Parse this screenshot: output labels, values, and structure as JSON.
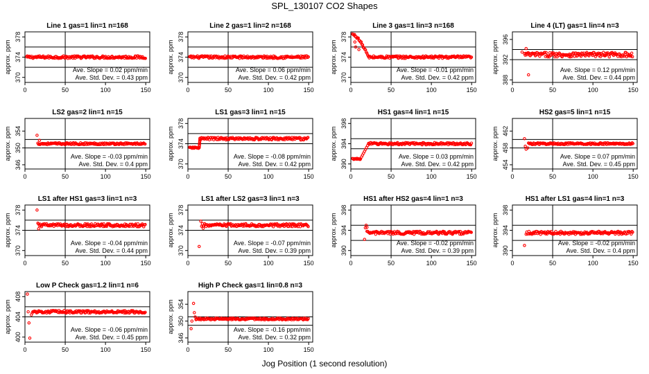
{
  "title": "SPL_130107  CO2 Shapes",
  "xlabel": "Jog Position (1 second resolution)",
  "chart_data": [
    {
      "type": "scatter",
      "title": "Line 1 gas=1 lin=1 n=168",
      "ylabel": "approx. ppm",
      "xlim": [
        0,
        155
      ],
      "xticks": [
        0,
        50,
        100,
        150
      ],
      "ylim": [
        369,
        379
      ],
      "yticks": [
        370,
        374,
        378
      ],
      "ref_lines": [
        372,
        376
      ],
      "vline": 50,
      "slope": "Ave. Slope = 0.02  ppm/min",
      "stddev": "Ave. Std. Dev. = 0.43  ppm",
      "baseline": 374,
      "noise": 0.25,
      "start_x": 2,
      "end_x": 150,
      "color": "#ff0000",
      "shape": "flat",
      "spikes": []
    },
    {
      "type": "scatter",
      "title": "Line 2 gas=1 lin=2 n=168",
      "ylabel": "approx. ppm",
      "xlim": [
        0,
        155
      ],
      "xticks": [
        0,
        50,
        100,
        150
      ],
      "ylim": [
        369,
        379
      ],
      "yticks": [
        370,
        374,
        378
      ],
      "ref_lines": [
        372,
        376
      ],
      "vline": 50,
      "slope": "Ave. Slope = 0.06  ppm/min",
      "stddev": "Ave. Std. Dev. = 0.42  ppm",
      "baseline": 374,
      "noise": 0.25,
      "start_x": 2,
      "end_x": 150,
      "color": "#ff0000",
      "shape": "flat",
      "spikes": []
    },
    {
      "type": "scatter",
      "title": "Line 3 gas=1 lin=3 n=168",
      "ylabel": "approx. ppm",
      "xlim": [
        0,
        155
      ],
      "xticks": [
        0,
        50,
        100,
        150
      ],
      "ylim": [
        369,
        379
      ],
      "yticks": [
        370,
        374,
        378
      ],
      "ref_lines": [
        372,
        376
      ],
      "vline": 50,
      "slope": "Ave. Slope = -0.01  ppm/min",
      "stddev": "Ave. Std. Dev. = 0.42  ppm",
      "baseline": 374,
      "noise": 0.25,
      "start_x": 2,
      "end_x": 150,
      "color": "#ff0000",
      "shape": "decay",
      "peak": 378.5,
      "decay_end": 22,
      "spikes": [
        [
          5,
          377
        ],
        [
          6,
          376
        ],
        [
          8,
          377.8
        ],
        [
          10,
          375.5
        ],
        [
          12,
          377
        ]
      ]
    },
    {
      "type": "scatter",
      "title": "Line 4 (LT) gas=1 lin=4 n=3",
      "ylabel": "approx. ppm",
      "xlim": [
        0,
        155
      ],
      "xticks": [
        0,
        50,
        100,
        150
      ],
      "ylim": [
        387.5,
        397.5
      ],
      "yticks": [
        388,
        392,
        396
      ],
      "ref_lines": [
        392,
        394
      ],
      "vline": 50,
      "slope": "Ave. Slope = 0.12  ppm/min",
      "stddev": "Ave. Std. Dev. = 0.44  ppm",
      "baseline": 393,
      "noise": 0.45,
      "start_x": 15,
      "end_x": 150,
      "color": "#ff0000",
      "shape": "flat",
      "spikes": [
        [
          12,
          393.5
        ],
        [
          20,
          389
        ],
        [
          17,
          394.2
        ]
      ]
    },
    {
      "type": "scatter",
      "title": "LS2 gas=2 lin=1 n=15",
      "ylabel": "approx. ppm",
      "xlim": [
        0,
        155
      ],
      "xticks": [
        0,
        50,
        100,
        150
      ],
      "ylim": [
        345,
        357
      ],
      "yticks": [
        346,
        350,
        354
      ],
      "ref_lines": [
        350,
        352
      ],
      "vline": 50,
      "slope": "Ave. Slope = -0.03  ppm/min",
      "stddev": "Ave. Std. Dev. = 0.4  ppm",
      "baseline": 351,
      "noise": 0.22,
      "start_x": 16,
      "end_x": 150,
      "color": "#ff0000",
      "shape": "flat",
      "spikes": [
        [
          15,
          353
        ],
        [
          18,
          351.8
        ]
      ]
    },
    {
      "type": "scatter",
      "title": "LS1 gas=3 lin=1 n=15",
      "ylabel": "approx. ppm",
      "xlim": [
        0,
        155
      ],
      "xticks": [
        0,
        50,
        100,
        150
      ],
      "ylim": [
        369,
        379
      ],
      "yticks": [
        370,
        374,
        378
      ],
      "ref_lines": [
        374,
        376
      ],
      "vline": 50,
      "slope": "Ave. Slope = -0.08  ppm/min",
      "stddev": "Ave. Std. Dev. = 0.42  ppm",
      "baseline": 375,
      "noise": 0.25,
      "start_x": 15,
      "end_x": 150,
      "color": "#ff0000",
      "shape": "steprise",
      "low": 373.2,
      "low_start": 2,
      "rise_at": 14,
      "spikes": []
    },
    {
      "type": "scatter",
      "title": "HS1 gas=4 lin=1 n=15",
      "ylabel": "approx. ppm",
      "xlim": [
        0,
        155
      ],
      "xticks": [
        0,
        50,
        100,
        150
      ],
      "ylim": [
        389,
        399
      ],
      "yticks": [
        390,
        394,
        398
      ],
      "ref_lines": [
        393,
        395
      ],
      "vline": 50,
      "slope": "Ave. Slope = 0.03  ppm/min",
      "stddev": "Ave. Std. Dev. = 0.42  ppm",
      "baseline": 394,
      "noise": 0.22,
      "start_x": 22,
      "end_x": 150,
      "color": "#ff0000",
      "shape": "steprise",
      "low": 391,
      "low_start": 2,
      "rise_at": 12,
      "spikes": []
    },
    {
      "type": "scatter",
      "title": "HS2 gas=5 lin=1 n=15",
      "ylabel": "approx. ppm",
      "xlim": [
        0,
        155
      ],
      "xticks": [
        0,
        50,
        100,
        150
      ],
      "ylim": [
        453,
        465
      ],
      "yticks": [
        454,
        458,
        462
      ],
      "ref_lines": [
        458,
        460
      ],
      "vline": 50,
      "slope": "Ave. Slope = 0.07  ppm/min",
      "stddev": "Ave. Std. Dev. = 0.45  ppm",
      "baseline": 459,
      "noise": 0.22,
      "start_x": 20,
      "end_x": 150,
      "color": "#ff0000",
      "shape": "flat",
      "spikes": [
        [
          15,
          460.2
        ],
        [
          16,
          458.4
        ],
        [
          17,
          457.7
        ],
        [
          19,
          458
        ]
      ]
    },
    {
      "type": "scatter",
      "title": "LS1 after HS1 gas=3 lin=1 n=3",
      "ylabel": "approx. ppm",
      "xlim": [
        0,
        155
      ],
      "xticks": [
        0,
        50,
        100,
        150
      ],
      "ylim": [
        369,
        379
      ],
      "yticks": [
        370,
        374,
        378
      ],
      "ref_lines": [
        374,
        376
      ],
      "vline": 50,
      "slope": "Ave. Slope = -0.04  ppm/min",
      "stddev": "Ave. Std. Dev. = 0.44  ppm",
      "baseline": 375,
      "noise": 0.3,
      "start_x": 17,
      "end_x": 150,
      "color": "#ff0000",
      "shape": "flat",
      "spikes": [
        [
          15,
          378
        ],
        [
          16,
          375.4
        ],
        [
          17,
          374.3
        ]
      ]
    },
    {
      "type": "scatter",
      "title": "LS1 after LS2 gas=3 lin=1 n=3",
      "ylabel": "approx. ppm",
      "xlim": [
        0,
        155
      ],
      "xticks": [
        0,
        50,
        100,
        150
      ],
      "ylim": [
        369,
        379
      ],
      "yticks": [
        370,
        374,
        378
      ],
      "ref_lines": [
        374,
        376
      ],
      "vline": 50,
      "slope": "Ave. Slope = -0.07  ppm/min",
      "stddev": "Ave. Std. Dev. = 0.39  ppm",
      "baseline": 375,
      "noise": 0.3,
      "start_x": 18,
      "end_x": 150,
      "color": "#ff0000",
      "shape": "flat",
      "spikes": [
        [
          14,
          370.8
        ],
        [
          16,
          375.8
        ],
        [
          17,
          374.8
        ],
        [
          19,
          374.4
        ]
      ]
    },
    {
      "type": "scatter",
      "title": "HS1 after HS2 gas=4 lin=1 n=3",
      "ylabel": "approx. ppm",
      "xlim": [
        0,
        155
      ],
      "xticks": [
        0,
        50,
        100,
        150
      ],
      "ylim": [
        389,
        399
      ],
      "yticks": [
        390,
        394,
        398
      ],
      "ref_lines": [
        392,
        395
      ],
      "vline": 50,
      "slope": "Ave. Slope = -0.02  ppm/min",
      "stddev": "Ave. Std. Dev. = 0.39  ppm",
      "baseline": 393.5,
      "noise": 0.3,
      "start_x": 20,
      "end_x": 150,
      "color": "#ff0000",
      "shape": "flat",
      "spikes": [
        [
          17,
          392.2
        ],
        [
          18,
          394.5
        ],
        [
          19,
          395
        ],
        [
          20,
          394.6
        ]
      ]
    },
    {
      "type": "scatter",
      "title": "HS1 after LS1 gas=4 lin=1 n=3",
      "ylabel": "approx. ppm",
      "xlim": [
        0,
        155
      ],
      "xticks": [
        0,
        50,
        100,
        150
      ],
      "ylim": [
        389,
        399
      ],
      "yticks": [
        390,
        394,
        398
      ],
      "ref_lines": [
        392,
        395
      ],
      "vline": 50,
      "slope": "Ave. Slope = -0.02  ppm/min",
      "stddev": "Ave. Std. Dev. = 0.4  ppm",
      "baseline": 393.5,
      "noise": 0.3,
      "start_x": 17,
      "end_x": 150,
      "color": "#ff0000",
      "shape": "flat",
      "spikes": [
        [
          15,
          391
        ]
      ]
    },
    {
      "type": "scatter",
      "title": "Low P Check gas=1.2 lin=1 n=6",
      "ylabel": "approx. ppm",
      "xlim": [
        0,
        155
      ],
      "xticks": [
        0,
        50,
        100,
        150
      ],
      "ylim": [
        399,
        409
      ],
      "yticks": [
        400,
        404,
        408
      ],
      "ref_lines": [
        404,
        406
      ],
      "vline": 50,
      "slope": "Ave. Slope = -0.06  ppm/min",
      "stddev": "Ave. Std. Dev. = 0.45  ppm",
      "baseline": 405,
      "noise": 0.25,
      "start_x": 9,
      "end_x": 150,
      "color": "#ff0000",
      "shape": "flat",
      "spikes": [
        [
          3,
          408.5
        ],
        [
          4,
          405
        ],
        [
          5,
          402.8
        ],
        [
          6,
          399.8
        ],
        [
          8,
          404.4
        ]
      ]
    },
    {
      "type": "scatter",
      "title": "High P Check gas=1 lin=0.8 n=3",
      "ylabel": "approx. ppm",
      "xlim": [
        0,
        155
      ],
      "xticks": [
        0,
        50,
        100,
        150
      ],
      "ylim": [
        345,
        357
      ],
      "yticks": [
        346,
        350,
        354
      ],
      "ref_lines": [
        349,
        351
      ],
      "vline": 50,
      "slope": "Ave. Slope = -0.16  ppm/min",
      "stddev": "Ave. Std. Dev. = 0.32  ppm",
      "baseline": 350.5,
      "noise": 0.2,
      "start_x": 10,
      "end_x": 150,
      "color": "#ff0000",
      "shape": "flat",
      "spikes": [
        [
          4,
          348.2
        ],
        [
          5,
          350
        ],
        [
          7,
          354.2
        ],
        [
          8,
          352
        ],
        [
          9,
          351
        ]
      ]
    }
  ]
}
